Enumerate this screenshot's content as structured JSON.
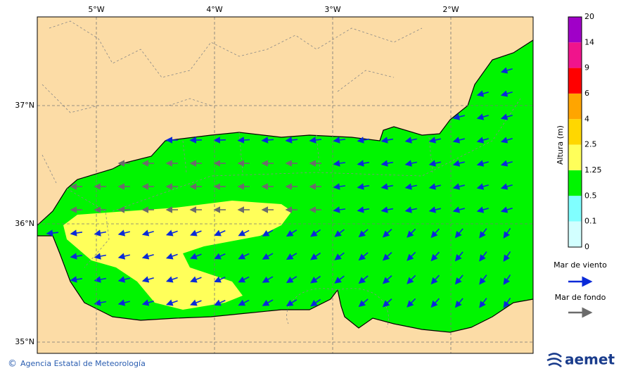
{
  "map": {
    "x_ticks": [
      "5°W",
      "4°W",
      "3°W",
      "2°W"
    ],
    "y_ticks": [
      "37°N",
      "36°N",
      "35°N"
    ]
  },
  "colorbar": {
    "title": "Altura (m)",
    "labels": [
      "20",
      "14",
      "9",
      "6",
      "4",
      "2.5",
      "1.25",
      "0.5",
      "0.1",
      "0"
    ]
  },
  "legend": {
    "wind_sea": "Mar de viento",
    "swell": "Mar de fondo"
  },
  "footer": {
    "copyright": "©",
    "credit": "Agencia Estatal de Meteorología",
    "logo": "aemet"
  }
}
